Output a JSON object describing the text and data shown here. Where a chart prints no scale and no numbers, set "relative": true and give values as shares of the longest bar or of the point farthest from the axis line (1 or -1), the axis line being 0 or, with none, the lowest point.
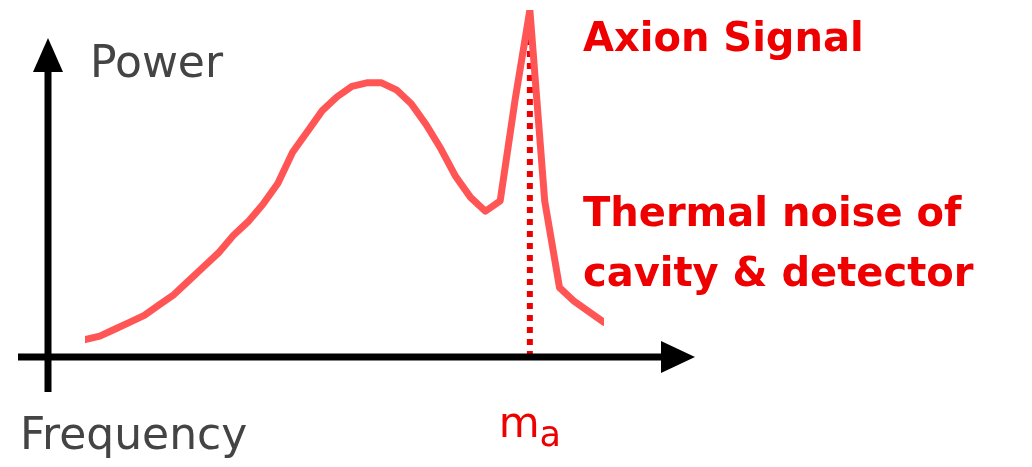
{
  "chart_data": {
    "type": "line",
    "relative": true,
    "xlabel": "Frequency",
    "ylabel": "Power",
    "categories": [
      null,
      null,
      null,
      null,
      null,
      null,
      null,
      null,
      null,
      null,
      null,
      null,
      null,
      null,
      null,
      null,
      null,
      null,
      null,
      null,
      null,
      null,
      null,
      null,
      null,
      null,
      null,
      null,
      null,
      null,
      null,
      null,
      null,
      null,
      null,
      null
    ],
    "series": [
      {
        "color": "#ff5555",
        "values": [
          0.05,
          0.06,
          0.08,
          0.1,
          0.12,
          0.15,
          0.18,
          0.22,
          0.26,
          0.3,
          0.35,
          0.39,
          0.44,
          0.5,
          0.59,
          0.65,
          0.71,
          0.75,
          0.78,
          0.79,
          0.79,
          0.77,
          0.73,
          0.67,
          0.6,
          0.52,
          0.46,
          0.42,
          0.45,
          0.74,
          1,
          0.45,
          0.2,
          0.16,
          0.13,
          0.1
        ]
      }
    ],
    "ref_lines": [
      {
        "axis": "x",
        "label": "m$_{a}$",
        "color": "#ee0000",
        "line_style": "dotted"
      }
    ],
    "annotations": [
      "Axion Signal",
      "Thermal noise of\ncavity & detector"
    ],
    "legend": false,
    "grid": false,
    "marker": "none",
    "line_style": "solid"
  }
}
